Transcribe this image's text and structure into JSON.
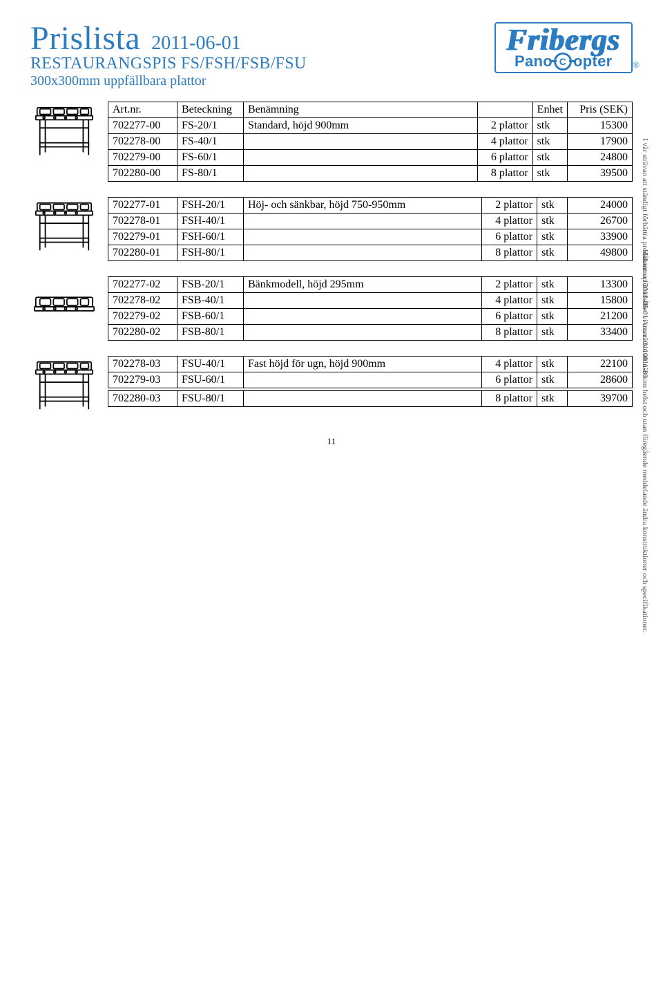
{
  "header": {
    "title": "Prislista",
    "date": "2011-06-01",
    "subtitle1": "RESTAURANGSPIS FS/FSH/FSB/FSU",
    "subtitle2": "300x300mm uppfällbara plattor",
    "logo_main": "Fribergs",
    "logo_sub_left": "Pano",
    "logo_sub_right": "opter",
    "logo_reg": "®"
  },
  "columns": {
    "art": "Art.nr.",
    "bet": "Beteckning",
    "ben": "Benämning",
    "unit": "Enhet",
    "price": "Pris (SEK)"
  },
  "groups": [
    {
      "id": "fs",
      "has_header": true,
      "rows": [
        {
          "art": "702277-00",
          "bet": "FS-20/1",
          "ben": "Standard, höjd 900mm",
          "qty": "2 plattor",
          "unit": "stk",
          "price": "15300"
        },
        {
          "art": "702278-00",
          "bet": "FS-40/1",
          "ben": "",
          "qty": "4 plattor",
          "unit": "stk",
          "price": "17900"
        },
        {
          "art": "702279-00",
          "bet": "FS-60/1",
          "ben": "",
          "qty": "6 plattor",
          "unit": "stk",
          "price": "24800"
        },
        {
          "art": "702280-00",
          "bet": "FS-80/1",
          "ben": "",
          "qty": "8 plattor",
          "unit": "stk",
          "price": "39500"
        }
      ]
    },
    {
      "id": "fsh",
      "has_header": false,
      "rows": [
        {
          "art": "702277-01",
          "bet": "FSH-20/1",
          "ben": "Höj- och sänkbar, höjd 750-950mm",
          "qty": "2 plattor",
          "unit": "stk",
          "price": "24000"
        },
        {
          "art": "702278-01",
          "bet": "FSH-40/1",
          "ben": "",
          "qty": "4 plattor",
          "unit": "stk",
          "price": "26700"
        },
        {
          "art": "702279-01",
          "bet": "FSH-60/1",
          "ben": "",
          "qty": "6 plattor",
          "unit": "stk",
          "price": "33900"
        },
        {
          "art": "702280-01",
          "bet": "FSH-80/1",
          "ben": "",
          "qty": "8 plattor",
          "unit": "stk",
          "price": "49800"
        }
      ]
    },
    {
      "id": "fsb",
      "has_header": false,
      "rows": [
        {
          "art": "702277-02",
          "bet": "FSB-20/1",
          "ben": "Bänkmodell, höjd 295mm",
          "qty": "2 plattor",
          "unit": "stk",
          "price": "13300"
        },
        {
          "art": "702278-02",
          "bet": "FSB-40/1",
          "ben": "",
          "qty": "4 plattor",
          "unit": "stk",
          "price": "15800"
        },
        {
          "art": "702279-02",
          "bet": "FSB-60/1",
          "ben": "",
          "qty": "6 plattor",
          "unit": "stk",
          "price": "21200"
        },
        {
          "art": "702280-02",
          "bet": "FSB-80/1",
          "ben": "",
          "qty": "8 plattor",
          "unit": "stk",
          "price": "33400"
        }
      ]
    },
    {
      "id": "fsu",
      "has_header": false,
      "split_after": 2,
      "rows": [
        {
          "art": "702278-03",
          "bet": "FSU-40/1",
          "ben": "Fast höjd för ugn, höjd 900mm",
          "qty": "4 plattor",
          "unit": "stk",
          "price": "22100"
        },
        {
          "art": "702279-03",
          "bet": "FSU-60/1",
          "ben": "",
          "qty": "6 plattor",
          "unit": "stk",
          "price": "28600"
        },
        {
          "art": "702280-03",
          "bet": "FSU-80/1",
          "ben": "",
          "qty": "8 plattor",
          "unit": "stk",
          "price": "39700"
        }
      ]
    }
  ],
  "side_note": "I vår strävan att ständigt förbättra produkterna förbehåller vi oss rätten att när som helst och utan föregående meddelande ändra konstruktioner och specifikationer.",
  "footer_note": "Håkantorp 2011-06-01   Art.nr. 3110011-80",
  "page_number": "11",
  "thumbs": {
    "fs": "stove-tall",
    "fsh": "stove-tall",
    "fsb": "stove-counter",
    "fsu": "stove-tall"
  }
}
